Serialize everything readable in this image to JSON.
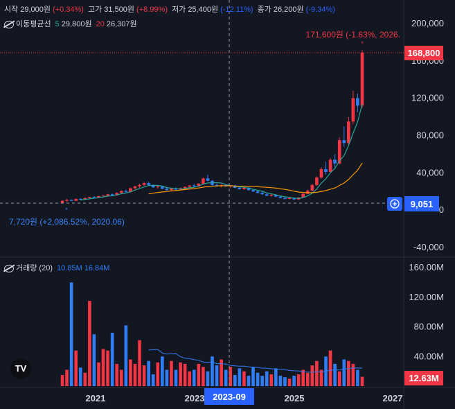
{
  "legend": {
    "open_label": "시작",
    "open_value": "29,000원",
    "open_change": "(+0.34%)",
    "high_label": "고가",
    "high_value": "31,500원",
    "high_change": "(+8.99%)",
    "low_label": "저가",
    "low_value": "25,400원",
    "low_change": "(-12.11%)",
    "close_label": "종가",
    "close_value": "26,200원",
    "close_change": "(-9.34%)"
  },
  "ma_legend": {
    "label": "이동평균선",
    "p1": "5",
    "v1": "29,800원",
    "p2": "20",
    "v2": "26,307원"
  },
  "vol_legend": {
    "label": "거래량 (20)",
    "v1": "10.85M",
    "v2": "16.84M"
  },
  "price_axis": {
    "ticks": [
      "200,000",
      "160,000",
      "120,000",
      "80,000",
      "40,000",
      "0",
      "-40,000"
    ]
  },
  "volume_axis": {
    "ticks": [
      "160.00M",
      "120.00M",
      "80.00M",
      "40.00M"
    ]
  },
  "time_axis": {
    "ticks": [
      "2021",
      "2023",
      "2025",
      "2027"
    ]
  },
  "badges": {
    "last_price": "168,800",
    "cursor_price": "9,051",
    "cursor_time": "2023-09",
    "volume_last": "12.63M"
  },
  "annotations": {
    "high": "171,600원 (-1.63%, 2026.",
    "low": "7,720원 (+2,086.52%, 2020.06)"
  },
  "colors": {
    "up": "#f23645",
    "down": "#2f7ef5",
    "background": "#131722",
    "ma5": "#26a69a",
    "ma20": "#ff9800"
  },
  "chart_data": {
    "type": "candlestick",
    "price_range": [
      -40000,
      200000
    ],
    "volume_range": [
      0,
      160
    ],
    "volume_unit": "M",
    "start_date": "2020-06",
    "candles": [
      [
        8000,
        10500,
        7720,
        10000
      ],
      [
        10000,
        12000,
        9000,
        11000
      ],
      [
        11000,
        11500,
        9500,
        10000
      ],
      [
        10000,
        12500,
        9800,
        12000
      ],
      [
        12000,
        13000,
        11000,
        11500
      ],
      [
        11500,
        13500,
        11000,
        13000
      ],
      [
        13000,
        14500,
        12500,
        14000
      ],
      [
        14000,
        15000,
        13000,
        13500
      ],
      [
        13500,
        15500,
        13000,
        15000
      ],
      [
        15000,
        16000,
        14000,
        15500
      ],
      [
        15500,
        17500,
        15000,
        17000
      ],
      [
        17000,
        18000,
        15500,
        16000
      ],
      [
        16000,
        19000,
        15500,
        18500
      ],
      [
        18500,
        21000,
        18000,
        20500
      ],
      [
        20500,
        22000,
        19000,
        19500
      ],
      [
        19500,
        24000,
        19000,
        23500
      ],
      [
        23500,
        26000,
        22500,
        25500
      ],
      [
        25500,
        28000,
        24000,
        27000
      ],
      [
        27000,
        30000,
        26000,
        29000
      ],
      [
        29000,
        30500,
        26500,
        27000
      ],
      [
        27000,
        27500,
        24000,
        24500
      ],
      [
        24500,
        26000,
        23000,
        25500
      ],
      [
        25500,
        26000,
        22500,
        23000
      ],
      [
        23000,
        24000,
        21000,
        21500
      ],
      [
        21500,
        23500,
        21000,
        23000
      ],
      [
        23000,
        24500,
        21500,
        22000
      ],
      [
        22000,
        24000,
        21500,
        23500
      ],
      [
        23500,
        25500,
        22500,
        25000
      ],
      [
        25000,
        27000,
        24000,
        26500
      ],
      [
        26500,
        28000,
        25000,
        25500
      ],
      [
        25500,
        29000,
        25000,
        28500
      ],
      [
        28500,
        35000,
        28000,
        34000
      ],
      [
        34000,
        38000,
        31000,
        31500
      ],
      [
        31500,
        32000,
        26000,
        27000
      ],
      [
        27000,
        28500,
        25000,
        26000
      ],
      [
        26000,
        27500,
        24500,
        27000
      ],
      [
        27000,
        28000,
        25000,
        25500
      ],
      [
        25500,
        27000,
        24000,
        26500
      ],
      [
        26500,
        27000,
        23500,
        24000
      ],
      [
        24000,
        25000,
        22000,
        22500
      ],
      [
        22500,
        24500,
        22000,
        24000
      ],
      [
        24000,
        24500,
        21000,
        21500
      ],
      [
        21500,
        22500,
        19500,
        20000
      ],
      [
        20000,
        21000,
        18000,
        18500
      ],
      [
        18500,
        19500,
        16500,
        17000
      ],
      [
        17000,
        18000,
        15000,
        15500
      ],
      [
        15500,
        17000,
        14500,
        16500
      ],
      [
        16500,
        17000,
        14000,
        14500
      ],
      [
        14500,
        15500,
        12500,
        13000
      ],
      [
        13000,
        14000,
        11500,
        12000
      ],
      [
        12000,
        13500,
        11500,
        13000
      ],
      [
        13000,
        13500,
        11000,
        11500
      ],
      [
        11500,
        14000,
        11000,
        13500
      ],
      [
        13500,
        18000,
        13000,
        17500
      ],
      [
        17500,
        22000,
        17000,
        21000
      ],
      [
        21000,
        28000,
        20000,
        27000
      ],
      [
        27000,
        36000,
        26000,
        35000
      ],
      [
        35000,
        46000,
        34000,
        44000
      ],
      [
        44000,
        52000,
        38000,
        41000
      ],
      [
        41000,
        56000,
        40000,
        54000
      ],
      [
        54000,
        60000,
        45000,
        50000
      ],
      [
        50000,
        78000,
        49000,
        75000
      ],
      [
        75000,
        90000,
        68000,
        72000
      ],
      [
        72000,
        100000,
        70000,
        95000
      ],
      [
        95000,
        128000,
        92000,
        120000
      ],
      [
        120000,
        125000,
        105000,
        112000
      ],
      [
        112000,
        171600,
        110000,
        168800
      ]
    ],
    "volumes": [
      15,
      22,
      140,
      48,
      25,
      18,
      115,
      70,
      32,
      50,
      48,
      72,
      30,
      22,
      82,
      36,
      30,
      62,
      28,
      34,
      16,
      32,
      40,
      22,
      34,
      22,
      32,
      30,
      20,
      22,
      30,
      26,
      20,
      40,
      28,
      36,
      22,
      26,
      15,
      24,
      20,
      14,
      26,
      18,
      14,
      20,
      16,
      24,
      14,
      12,
      10,
      14,
      16,
      22,
      18,
      28,
      34,
      22,
      40,
      48,
      30,
      20,
      36,
      34,
      30,
      22,
      12.63
    ],
    "annotations": {
      "high": {
        "value": 171600,
        "change_pct": -1.63
      },
      "low": {
        "value": 7720,
        "change_pct": 2086.52,
        "date": "2020-06"
      }
    },
    "last_price": 168800,
    "cursor": {
      "time": "2023-09",
      "price": 9051
    }
  }
}
